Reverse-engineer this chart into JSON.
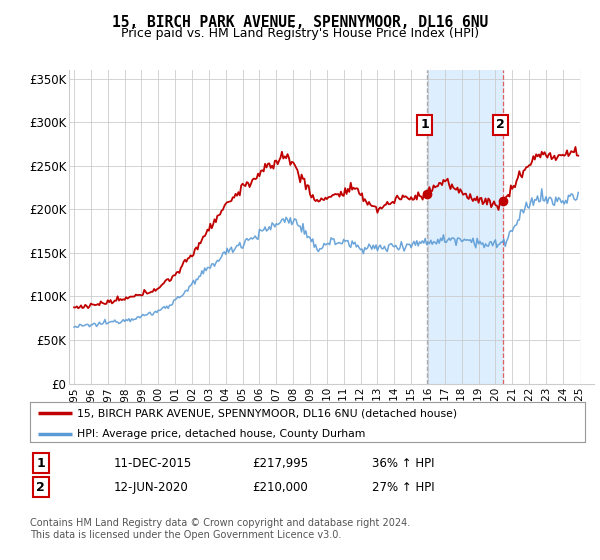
{
  "title": "15, BIRCH PARK AVENUE, SPENNYMOOR, DL16 6NU",
  "subtitle": "Price paid vs. HM Land Registry's House Price Index (HPI)",
  "legend_line1": "15, BIRCH PARK AVENUE, SPENNYMOOR, DL16 6NU (detached house)",
  "legend_line2": "HPI: Average price, detached house, County Durham",
  "sale1_date": "11-DEC-2015",
  "sale1_price": 217995,
  "sale1_label": "36% ↑ HPI",
  "sale2_date": "12-JUN-2020",
  "sale2_price": 210000,
  "sale2_label": "27% ↑ HPI",
  "footnote": "Contains HM Land Registry data © Crown copyright and database right 2024.\nThis data is licensed under the Open Government Licence v3.0.",
  "hpi_color": "#5b9bd5",
  "price_color": "#c00000",
  "vline1_color": "#aaaaaa",
  "vline2_color": "#e06060",
  "background_color": "#ffffff",
  "plot_bg_color": "#ffffff",
  "shade_color": "#ddeeff",
  "grid_color": "#cccccc",
  "ylim": [
    0,
    360000
  ],
  "yticks": [
    0,
    50000,
    100000,
    150000,
    200000,
    250000,
    300000,
    350000
  ],
  "year_start": 1995,
  "year_end": 2025,
  "sale1_time": 2015.96,
  "sale2_time": 2020.46
}
